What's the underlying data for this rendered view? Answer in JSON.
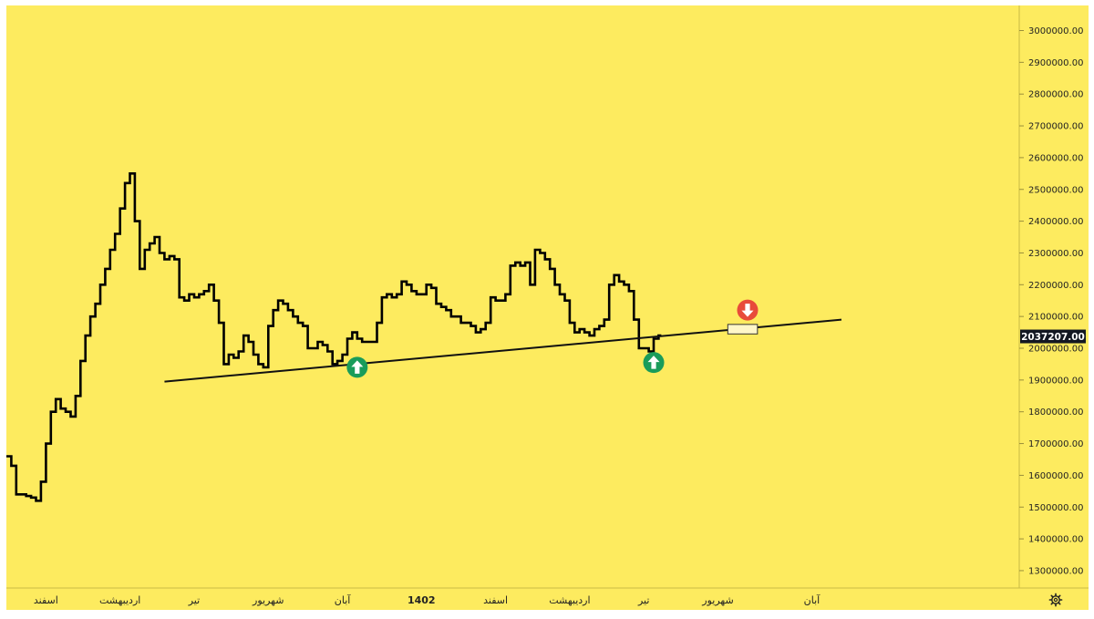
{
  "chart_data": {
    "type": "line",
    "title": "",
    "xlabel": "",
    "ylabel": "",
    "background": "#fdeb5f",
    "line_color": "#000000",
    "ylim": [
      1250000,
      3050000
    ],
    "y_ticks": [
      3000000,
      2900000,
      2800000,
      2700000,
      2600000,
      2500000,
      2400000,
      2300000,
      2200000,
      2100000,
      2000000,
      1900000,
      1800000,
      1700000,
      1600000,
      1500000,
      1400000,
      1300000
    ],
    "y_tick_labels": [
      "3000000.00",
      "2900000.00",
      "2800000.00",
      "2700000.00",
      "2600000.00",
      "2500000.00",
      "2400000.00",
      "2300000.00",
      "2200000.00",
      "2100000.00",
      "2000000.00",
      "1900000.00",
      "1800000.00",
      "1700000.00",
      "1600000.00",
      "1500000.00",
      "1400000.00",
      "1300000.00"
    ],
    "x_tick_labels": [
      "اسفند",
      "اردیبهشت",
      "تیر",
      "شهریور",
      "آبان",
      "1402",
      "اسفند",
      "اردیبهشت",
      "تیر",
      "شهریور",
      "آبان"
    ],
    "x_tick_index": [
      8,
      23,
      38,
      53,
      68,
      84,
      99,
      114,
      129,
      144,
      163
    ],
    "last_price_label": "2037207.00",
    "last_price_value": 2037207,
    "series": [
      {
        "values": [
          1660000,
          1630000,
          1540000,
          1540000,
          1535000,
          1530000,
          1520000,
          1580000,
          1700000,
          1800000,
          1840000,
          1810000,
          1800000,
          1785000,
          1850000,
          1960000,
          2040000,
          2100000,
          2140000,
          2200000,
          2250000,
          2310000,
          2360000,
          2440000,
          2520000,
          2550000,
          2400000,
          2250000,
          2310000,
          2330000,
          2350000,
          2300000,
          2280000,
          2290000,
          2280000,
          2160000,
          2150000,
          2170000,
          2160000,
          2170000,
          2180000,
          2200000,
          2150000,
          2080000,
          1950000,
          1980000,
          1970000,
          1990000,
          2040000,
          2020000,
          1980000,
          1950000,
          1940000,
          2070000,
          2120000,
          2150000,
          2140000,
          2120000,
          2100000,
          2080000,
          2070000,
          2000000,
          2000000,
          2020000,
          2010000,
          1990000,
          1950000,
          1960000,
          1980000,
          2030000,
          2050000,
          2030000,
          2020000,
          2020000,
          2020000,
          2080000,
          2160000,
          2170000,
          2160000,
          2170000,
          2210000,
          2200000,
          2180000,
          2170000,
          2170000,
          2200000,
          2190000,
          2140000,
          2130000,
          2120000,
          2100000,
          2100000,
          2080000,
          2080000,
          2070000,
          2050000,
          2060000,
          2080000,
          2160000,
          2150000,
          2150000,
          2170000,
          2260000,
          2270000,
          2260000,
          2270000,
          2200000,
          2310000,
          2300000,
          2280000,
          2250000,
          2200000,
          2170000,
          2150000,
          2080000,
          2050000,
          2060000,
          2050000,
          2040000,
          2060000,
          2070000,
          2090000,
          2200000,
          2230000,
          2210000,
          2200000,
          2180000,
          2090000,
          2000000,
          2000000,
          1990000,
          2030000,
          2040000
        ]
      }
    ],
    "trendline": {
      "start_index": 32,
      "start_value": 1895000,
      "end_index": 169,
      "end_value": 2090000
    },
    "annotations": [
      {
        "type": "up-arrow",
        "color": "#1a9c5a",
        "index": 71,
        "value": 1940000
      },
      {
        "type": "up-arrow",
        "color": "#1a9c5a",
        "index": 131,
        "value": 1955000
      },
      {
        "type": "down-arrow",
        "color": "#e84b3a",
        "index": 150,
        "value": 2120000
      }
    ],
    "highlight_box": {
      "start_index": 146,
      "end_index": 152,
      "top_value": 2075000,
      "bottom_value": 2045000
    }
  },
  "icons": {
    "settings": "gear-icon"
  }
}
